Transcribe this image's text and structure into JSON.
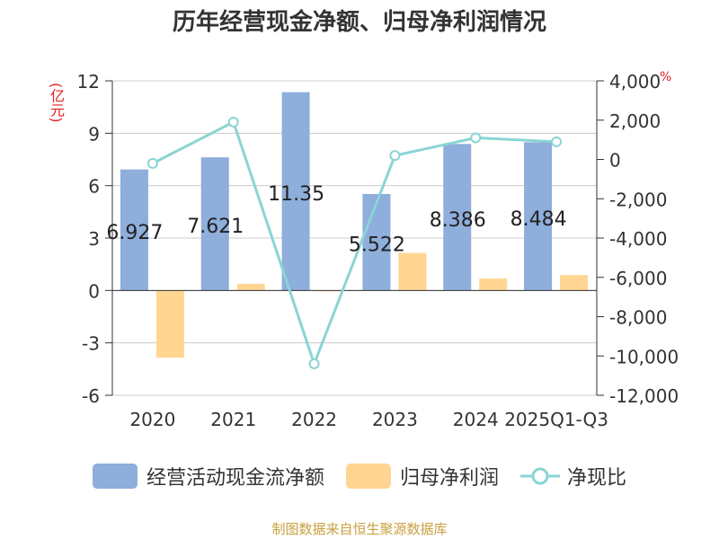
{
  "title": "历年经营现金净额、归母净利润情况",
  "left_unit": "(亿元)",
  "right_unit": "%",
  "source": "制图数据来自恒生聚源数据库",
  "colors": {
    "cash": "#8eaedb",
    "profit": "#ffd591",
    "ratio": "#8ad4d4"
  },
  "chart_data": {
    "type": "bar",
    "title": "历年经营现金净额、归母净利润情况",
    "categories": [
      "2020",
      "2021",
      "2022",
      "2023",
      "2024",
      "2025Q1-Q3"
    ],
    "ylim": [
      -6,
      12
    ],
    "yticks": [
      -6,
      -3,
      0,
      3,
      6,
      9,
      12
    ],
    "ytick_labels": [
      "-6",
      "-3",
      "0",
      "3",
      "6",
      "9",
      "12"
    ],
    "y2lim": [
      -12000,
      4000
    ],
    "y2ticks": [
      -12000,
      -10000,
      -8000,
      -6000,
      -4000,
      -2000,
      0,
      2000,
      4000
    ],
    "y2tick_labels": [
      "-12,000",
      "-10,000",
      "-8,000",
      "-6,000",
      "-4,000",
      "-2,000",
      "0",
      "2,000",
      "4,000"
    ],
    "series": [
      {
        "name": "经营活动现金流净额",
        "type": "bar",
        "axis": "left",
        "values": [
          6.927,
          7.621,
          11.35,
          5.522,
          8.386,
          8.484
        ],
        "labels": [
          "6.927",
          "7.621",
          "11.35",
          "5.522",
          "8.386",
          "8.484"
        ]
      },
      {
        "name": "归母净利润",
        "type": "bar",
        "axis": "left",
        "values": [
          -3.85,
          0.38,
          -0.05,
          2.15,
          0.68,
          0.88
        ]
      },
      {
        "name": "净现比",
        "type": "line",
        "axis": "right",
        "values": [
          -200,
          1900,
          -10400,
          200,
          1100,
          900
        ]
      }
    ]
  }
}
